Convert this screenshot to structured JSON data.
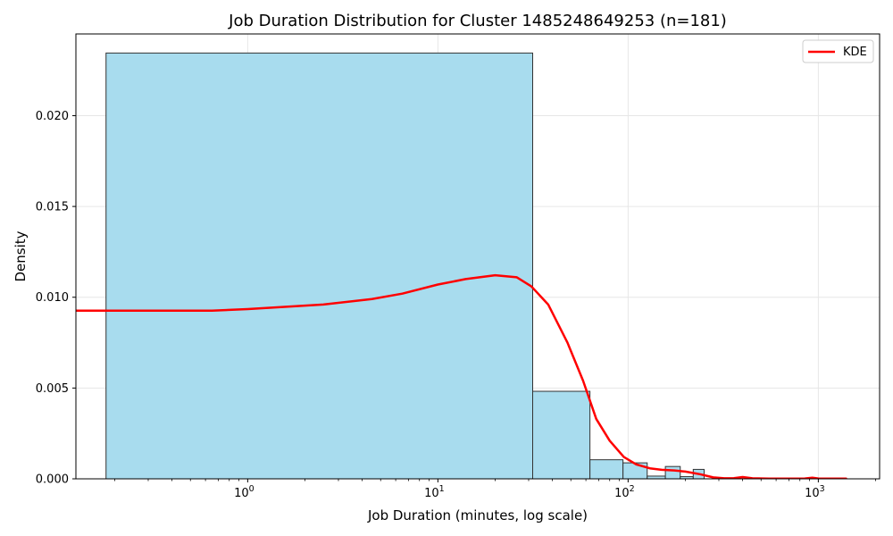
{
  "chart_data": {
    "type": "bar",
    "title": "Job Duration Distribution for Cluster 1485248649253 (n=181)",
    "xlabel": "Job Duration (minutes, log scale)",
    "ylabel": "Density",
    "xscale": "log",
    "xlim": [
      0.125,
      2100
    ],
    "ylim": [
      0,
      0.0245
    ],
    "grid": true,
    "legend_position": "top-right",
    "bar_color": "#a8dcee",
    "bar_edge_color": "#333333",
    "x_ticks": [
      {
        "value": 1,
        "base": "10",
        "exp": "0"
      },
      {
        "value": 10,
        "base": "10",
        "exp": "1"
      },
      {
        "value": 100,
        "base": "10",
        "exp": "2"
      },
      {
        "value": 1000,
        "base": "10",
        "exp": "3"
      }
    ],
    "y_ticks": [
      {
        "value": 0,
        "label": "0.000"
      },
      {
        "value": 0.005,
        "label": "0.005"
      },
      {
        "value": 0.01,
        "label": "0.010"
      },
      {
        "value": 0.015,
        "label": "0.015"
      },
      {
        "value": 0.02,
        "label": "0.020"
      }
    ],
    "bins": [
      {
        "x0": 0.18,
        "x1": 31.5,
        "density": 0.02345
      },
      {
        "x0": 31.5,
        "x1": 63,
        "density": 0.00482
      },
      {
        "x0": 63,
        "x1": 94,
        "density": 0.00105
      },
      {
        "x0": 94,
        "x1": 126,
        "density": 0.00088
      },
      {
        "x0": 126,
        "x1": 157,
        "density": 0.00015
      },
      {
        "x0": 157,
        "x1": 188,
        "density": 0.00068
      },
      {
        "x0": 188,
        "x1": 220,
        "density": 0.00012
      },
      {
        "x0": 220,
        "x1": 251,
        "density": 0.00052
      }
    ],
    "series": [
      {
        "name": "KDE",
        "color": "#ff0000",
        "x": [
          0.125,
          0.25,
          0.65,
          1.0,
          2.5,
          4.5,
          6.5,
          10,
          14,
          20,
          26,
          31,
          38,
          48,
          58,
          68,
          80,
          95,
          110,
          130,
          150,
          175,
          200,
          240,
          280,
          320,
          360,
          400,
          450,
          550,
          700,
          850,
          930,
          1000,
          1100,
          1200,
          1400
        ],
        "y": [
          0.00926,
          0.00926,
          0.00926,
          0.00935,
          0.0096,
          0.0099,
          0.0102,
          0.0107,
          0.011,
          0.01121,
          0.0111,
          0.0106,
          0.0096,
          0.0075,
          0.0054,
          0.0033,
          0.0021,
          0.0012,
          0.0008,
          0.00058,
          0.0005,
          0.00046,
          0.0004,
          0.00025,
          8e-05,
          3e-05,
          4e-05,
          0.0001,
          3e-05,
          1e-05,
          1e-05,
          2e-05,
          6e-05,
          2e-05,
          1e-05,
          1e-05,
          1e-05
        ]
      }
    ]
  }
}
